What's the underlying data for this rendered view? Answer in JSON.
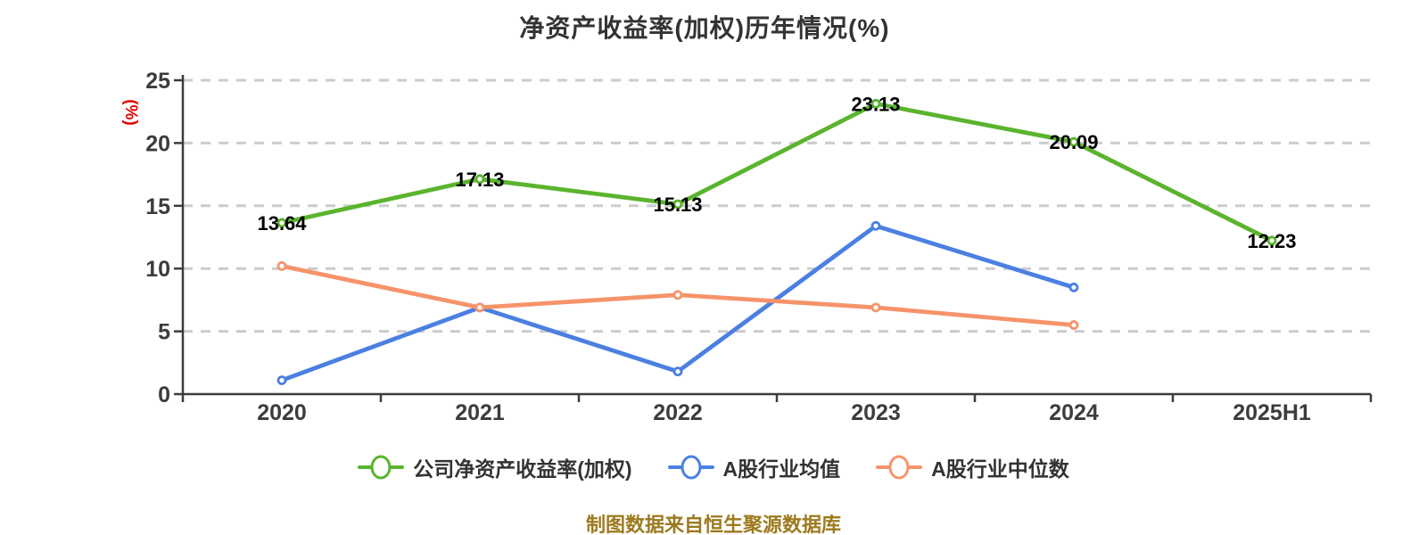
{
  "title": "净资产收益率(加权)历年情况(%)",
  "y_axis_label": "(%)",
  "footer": "制图数据来自恒生聚源数据库",
  "colors": {
    "background": "#ffffff",
    "title_text": "#333333",
    "axis": "#3c3c3c",
    "gridline": "#cccccc",
    "tick_label": "#3c3c3c",
    "value_label": "#000000",
    "y_axis_label": "#e60000",
    "footer_text": "#9c7a1e",
    "marker_fill": "#ffffff"
  },
  "chart_data": {
    "type": "line",
    "title": "净资产收益率(加权)历年情况(%)",
    "xlabel": "",
    "ylabel": "(%)",
    "categories": [
      "2020",
      "2021",
      "2022",
      "2023",
      "2024",
      "2025H1"
    ],
    "y_ticks": [
      0,
      5,
      10,
      15,
      20,
      25
    ],
    "ylim": [
      0,
      25
    ],
    "grid": "dashed-horizontal",
    "legend_position": "bottom",
    "series": [
      {
        "key": "company-roe-weighted",
        "name": "公司净资产收益率(加权)",
        "color": "#5ab42d",
        "values": [
          13.64,
          17.13,
          15.13,
          23.13,
          20.09,
          12.23
        ],
        "point_labels": [
          "13.64",
          "17.13",
          "15.13",
          "23.13",
          "20.09",
          "12.23"
        ],
        "show_point_labels": true
      },
      {
        "key": "a-share-industry-mean",
        "name": "A股行业均值",
        "color": "#4b80e1",
        "values": [
          1.1,
          6.9,
          1.8,
          13.4,
          8.5,
          null
        ],
        "show_point_labels": false
      },
      {
        "key": "a-share-industry-median",
        "name": "A股行业中位数",
        "color": "#f6936a",
        "values": [
          10.2,
          6.9,
          7.9,
          6.9,
          5.5,
          null
        ],
        "show_point_labels": false
      }
    ]
  }
}
